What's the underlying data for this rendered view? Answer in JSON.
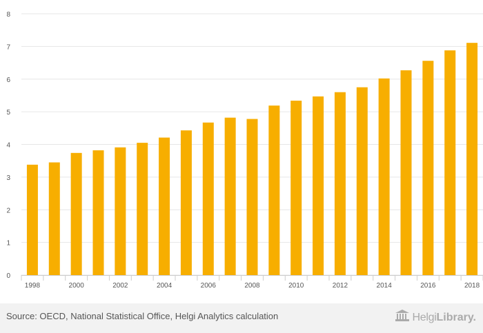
{
  "chart_data": {
    "type": "bar",
    "title": "",
    "xlabel": "",
    "ylabel": "",
    "categories": [
      "1998",
      "1999",
      "2000",
      "2001",
      "2002",
      "2003",
      "2004",
      "2005",
      "2006",
      "2007",
      "2008",
      "2009",
      "2010",
      "2011",
      "2012",
      "2013",
      "2014",
      "2015",
      "2016",
      "2017",
      "2018"
    ],
    "values": [
      3.38,
      3.45,
      3.74,
      3.82,
      3.91,
      4.05,
      4.21,
      4.43,
      4.67,
      4.82,
      4.78,
      5.19,
      5.34,
      5.47,
      5.6,
      5.75,
      6.02,
      6.27,
      6.56,
      6.88,
      7.11
    ],
    "x_tick_labels": [
      "1998",
      "2000",
      "2002",
      "2004",
      "2006",
      "2008",
      "2010",
      "2012",
      "2014",
      "2016",
      "2018"
    ],
    "y_tick_labels": [
      "0",
      "1",
      "2",
      "3",
      "4",
      "5",
      "6",
      "7",
      "8"
    ],
    "ylim": [
      0,
      8
    ],
    "grid": true,
    "legend": "none",
    "bar_color": "#f7ae00",
    "grid_color": "#e6e6e6"
  },
  "footer": {
    "source": "Source: OECD, National Statistical Office, Helgi Analytics calculation",
    "brand_part1": "Helgi",
    "brand_part2": "Library."
  }
}
